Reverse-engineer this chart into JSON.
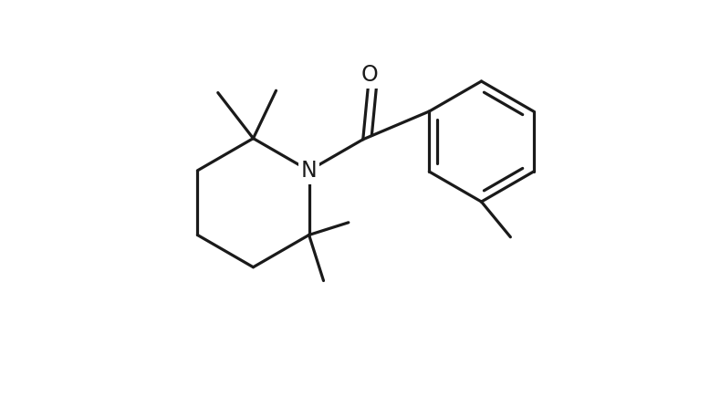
{
  "bg_color": "#ffffff",
  "line_color": "#1a1a1a",
  "line_width": 2.3,
  "fontsize_label": 17
}
